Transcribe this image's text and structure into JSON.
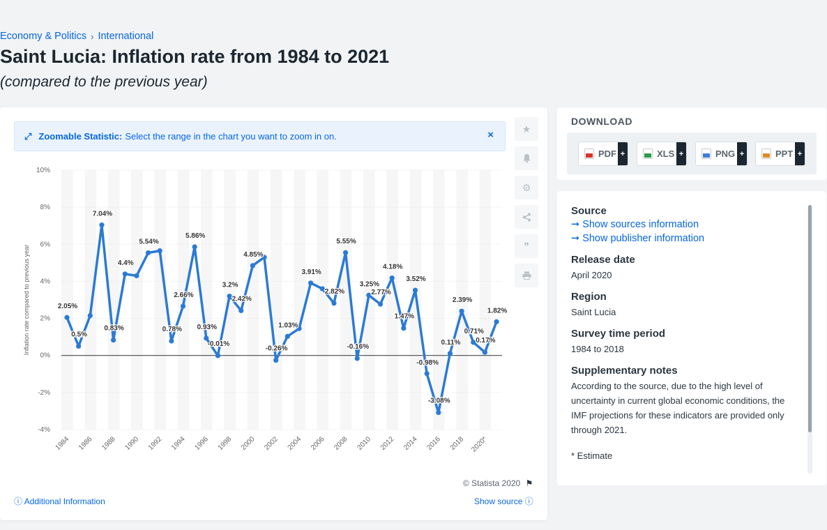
{
  "breadcrumb": {
    "item1": "Economy & Politics",
    "sep": "›",
    "item2": "International"
  },
  "title": "Saint Lucia: Inflation rate from 1984 to 2021",
  "subtitle": "(compared to the previous year)",
  "zoom_banner": {
    "label": "Zoomable Statistic:",
    "text": "Select the range in the chart you want to zoom in on.",
    "close": "×",
    "icon": "expand-icon"
  },
  "tools": [
    "star-icon",
    "bell-icon",
    "gear-icon",
    "share-icon",
    "quote-icon",
    "print-icon"
  ],
  "footer": {
    "copyright": "© Statista 2020",
    "additional_info": "Additional Information",
    "show_source": "Show source"
  },
  "download": {
    "title": "DOWNLOAD",
    "buttons": [
      {
        "label": "PDF",
        "color": "#d9342b"
      },
      {
        "label": "XLS",
        "color": "#2e9b48"
      },
      {
        "label": "PNG",
        "color": "#3c7fd6"
      },
      {
        "label": "PPT",
        "color": "#e08a2c"
      }
    ],
    "plus": "+"
  },
  "info": {
    "source_h": "Source",
    "sources_link": "Show sources information",
    "publisher_link": "Show publisher information",
    "release_h": "Release date",
    "release_v": "April 2020",
    "region_h": "Region",
    "region_v": "Saint Lucia",
    "survey_h": "Survey time period",
    "survey_v": "1984 to 2018",
    "notes_h": "Supplementary notes",
    "notes_v": "According to the source, due to the high level of uncertainty in current global economic conditions, the IMF projections for these indicators are provided only through 2021.",
    "estimate_v": "* Estimate"
  },
  "chart_data": {
    "type": "line",
    "ylabel": "Inflation rate compared to previous year",
    "xlabel": "",
    "ylim": [
      -4,
      10
    ],
    "yticks": [
      "10%",
      "8%",
      "6%",
      "4%",
      "2%",
      "0%",
      "-2%",
      "-4%"
    ],
    "ytick_values": [
      10,
      8,
      6,
      4,
      2,
      0,
      -2,
      -4
    ],
    "xticks": [
      "1984",
      "1986",
      "1988",
      "1990",
      "1992",
      "1994",
      "1996",
      "1998",
      "2000",
      "2002",
      "2004",
      "2006",
      "2008",
      "2010",
      "2012",
      "2014",
      "2016",
      "2018",
      "2020*"
    ],
    "x": [
      1984,
      1985,
      1986,
      1987,
      1988,
      1989,
      1990,
      1991,
      1992,
      1993,
      1994,
      1995,
      1996,
      1997,
      1998,
      1999,
      2000,
      2001,
      2002,
      2003,
      2004,
      2005,
      2006,
      2007,
      2008,
      2009,
      2010,
      2011,
      2012,
      2013,
      2014,
      2015,
      2016,
      2017,
      2018,
      2019,
      2020,
      2021
    ],
    "values": [
      2.05,
      0.5,
      2.15,
      7.04,
      0.83,
      4.4,
      4.3,
      5.54,
      5.65,
      0.78,
      2.66,
      5.86,
      0.93,
      -0.01,
      3.2,
      2.42,
      4.85,
      5.3,
      -0.26,
      1.03,
      1.45,
      3.91,
      3.6,
      2.82,
      5.55,
      -0.16,
      3.25,
      2.77,
      4.18,
      1.47,
      3.52,
      -0.98,
      -3.08,
      0.11,
      2.39,
      0.71,
      0.17,
      1.82
    ],
    "data_labels": [
      "2.05%",
      "0.5%",
      "",
      "7.04%",
      "0.83%",
      "4.4%",
      "",
      "5.54%",
      "",
      "0.78%",
      "2.66%",
      "5.86%",
      "0.93%",
      "-0.01%",
      "3.2%",
      "2.42%",
      "4.85%",
      "",
      "-0.26%",
      "1.03%",
      "",
      "3.91%",
      "",
      "2.82%",
      "5.55%",
      "-0.16%",
      "3.25%",
      "2.77%",
      "4.18%",
      "1.47%",
      "3.52%",
      "-0.98%",
      "-3.08%",
      "0.11%",
      "2.39%",
      "0.71%",
      "0.17%",
      "1.82%"
    ],
    "line_color": "#2b7ad6",
    "grid": true,
    "legend": "none"
  }
}
